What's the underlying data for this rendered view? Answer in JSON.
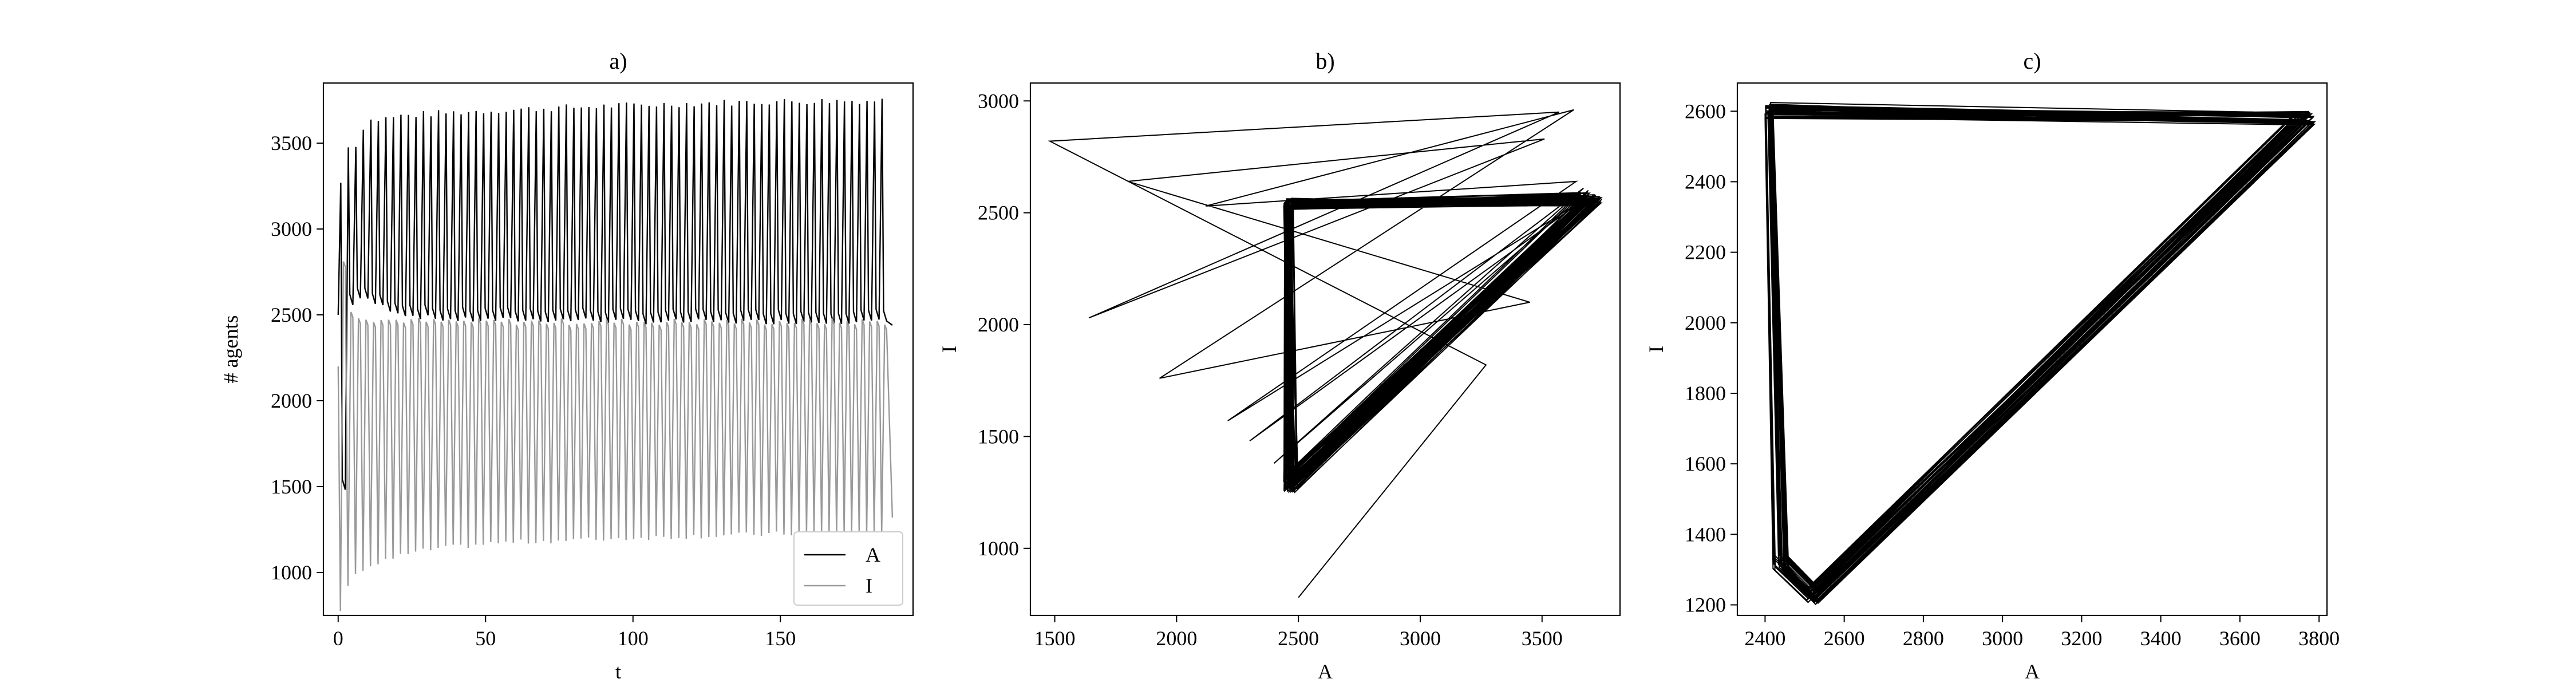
{
  "figure": {
    "panels": [
      {
        "title": "a)",
        "xlabel": "t",
        "ylabel": "# agents",
        "xlim": [
          -5,
          195
        ],
        "ylim": [
          750,
          3850
        ],
        "xticks": [
          0,
          50,
          100,
          150
        ],
        "yticks": [
          1000,
          1500,
          2000,
          2500,
          3000,
          3500
        ],
        "legend": {
          "placement": "lower-right",
          "entries": [
            "A",
            "I"
          ]
        }
      },
      {
        "title": "b)",
        "xlabel": "A",
        "ylabel": "I",
        "xlim": [
          1400,
          3820
        ],
        "ylim": [
          700,
          3080
        ],
        "xticks": [
          1500,
          2000,
          2500,
          3000,
          3500
        ],
        "yticks": [
          1000,
          1500,
          2000,
          2500,
          3000
        ]
      },
      {
        "title": "c)",
        "xlabel": "A",
        "ylabel": "I",
        "xlim": [
          2330,
          3820
        ],
        "ylim": [
          1170,
          2680
        ],
        "xticks": [
          2400,
          2600,
          2800,
          3000,
          3200,
          3400,
          3600,
          3800
        ],
        "yticks": [
          1200,
          1400,
          1600,
          1800,
          2000,
          2200,
          2400,
          2600
        ]
      }
    ]
  },
  "chart_data": [
    {
      "type": "line",
      "title": "a)",
      "xlabel": "t",
      "ylabel": "# agents",
      "xlim": [
        -5,
        195
      ],
      "ylim": [
        750,
        3850
      ],
      "grid": false,
      "legend": "lower-right",
      "series": [
        {
          "name": "A",
          "color": "#000000",
          "x": [
            0,
            1,
            2,
            3,
            4,
            5,
            6,
            7,
            8,
            10,
            12,
            14,
            16,
            18,
            20,
            25,
            30,
            40,
            50,
            60,
            80,
            100,
            120,
            150,
            170,
            185,
            188
          ],
          "peaks": [
            3270,
            3570,
            3510,
            3450,
            3630,
            3640,
            3660,
            3670,
            3680,
            3690,
            3700,
            3710,
            3720,
            3730,
            3740,
            3745,
            3750
          ],
          "troughs": [
            1480,
            1800,
            2550,
            2600,
            2580,
            2540,
            2500,
            2480,
            2470,
            2470,
            2470,
            2470,
            2460,
            2460,
            2460,
            2460,
            2460
          ],
          "values": [
            2500,
            3270,
            1480,
            3570,
            2560,
            3510,
            1800,
            3450,
            2580,
            3630,
            2560,
            3640,
            2500,
            3660,
            2480,
            3680,
            2470,
            3700,
            2470,
            3720,
            2460,
            3740,
            2460,
            3745,
            2460,
            3750,
            2440
          ]
        },
        {
          "name": "I",
          "color": "#999999",
          "x": [
            0,
            1,
            2,
            3,
            4,
            5,
            6,
            7,
            8,
            10,
            12,
            14,
            16,
            18,
            20,
            25,
            30,
            40,
            50,
            60,
            80,
            100,
            120,
            150,
            170,
            185,
            188
          ],
          "peaks": [
            2820,
            2950,
            2550,
            2500,
            2480,
            2470,
            2470,
            2460,
            2460,
            2460,
            2460,
            2460,
            2460,
            2460,
            2460,
            2460,
            2460
          ],
          "troughs": [
            780,
            950,
            870,
            1000,
            1020,
            1060,
            1100,
            1130,
            1150,
            1170,
            1180,
            1190,
            1200,
            1210,
            1220,
            1230,
            1240
          ],
          "values": [
            2200,
            780,
            2820,
            950,
            2950,
            870,
            2550,
            1000,
            2500,
            1060,
            2480,
            1100,
            2470,
            1150,
            2460,
            1180,
            2460,
            1200,
            2460,
            1220,
            2460,
            1230,
            2460,
            1240,
            2460,
            1240,
            1320
          ]
        }
      ]
    },
    {
      "type": "line",
      "title": "b)",
      "xlabel": "A",
      "ylabel": "I",
      "xlim": [
        1400,
        3820
      ],
      "ylim": [
        700,
        3080
      ],
      "grid": false,
      "series": [
        {
          "name": "",
          "color": "#000000",
          "description_points_x": [
            2500,
            3270,
            1480,
            3570,
            1640,
            3510,
            1800,
            3450,
            1930,
            3630,
            2120,
            3640,
            2210,
            3660,
            2300,
            3670,
            2400,
            3690,
            2460,
            3720,
            2470,
            3740,
            2480,
            3745
          ],
          "description_points_y": [
            780,
            1820,
            2820,
            2950,
            2030,
            2830,
            2640,
            2100,
            1760,
            2960,
            2530,
            2640,
            1570,
            2550,
            1480,
            2610,
            1380,
            2600,
            1300,
            2580,
            1280,
            2570,
            1290,
            2560
          ]
        }
      ]
    },
    {
      "type": "line",
      "title": "c)",
      "xlabel": "A",
      "ylabel": "I",
      "xlim": [
        2330,
        3820
      ],
      "ylim": [
        1170,
        2680
      ],
      "grid": false,
      "series": [
        {
          "name": "",
          "color": "#000000",
          "cycle": {
            "A": [
              2410,
              2440,
              2520,
              3760,
              2410
            ],
            "I": [
              2620,
              1320,
              1230,
              2580,
              2620
            ]
          }
        }
      ]
    }
  ]
}
